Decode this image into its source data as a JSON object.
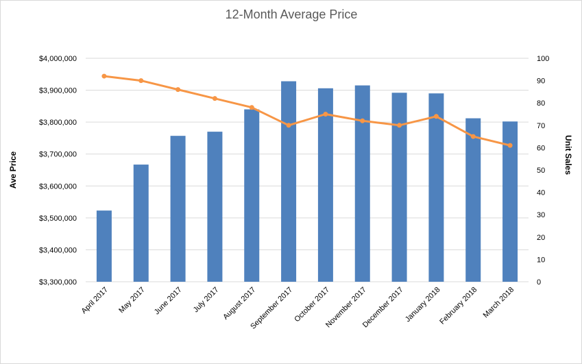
{
  "chart_data": {
    "type": "bar",
    "title": "12-Month Average Price",
    "ylabel": "Ave Price",
    "y2label": "Unit Sales",
    "categories": [
      "April 2017",
      "May 2017",
      "June 2017",
      "July 2017",
      "August 2017",
      "September 2017",
      "October 2017",
      "November 2017",
      "December 2017",
      "January 2018",
      "February 2018",
      "March 2018"
    ],
    "series": [
      {
        "type": "bar",
        "axis": "left",
        "color": "#4f81bd",
        "values": [
          3523000,
          3667000,
          3757000,
          3770000,
          3840000,
          3928000,
          3906000,
          3915000,
          3892000,
          3890000,
          3812000,
          3802000
        ]
      },
      {
        "type": "line",
        "axis": "right",
        "color": "#f79646",
        "values": [
          92,
          90,
          86,
          82,
          78,
          70,
          75,
          72,
          70,
          74,
          65,
          61
        ]
      }
    ],
    "ylim": [
      3300000,
      4000000
    ],
    "y2lim": [
      0,
      100
    ],
    "yticks": [
      "$3,300,000",
      "$3,400,000",
      "$3,500,000",
      "$3,600,000",
      "$3,700,000",
      "$3,800,000",
      "$3,900,000",
      "$4,000,000"
    ],
    "y2ticks": [
      "0",
      "10",
      "20",
      "30",
      "40",
      "50",
      "60",
      "70",
      "80",
      "90",
      "100"
    ],
    "grid": true
  }
}
